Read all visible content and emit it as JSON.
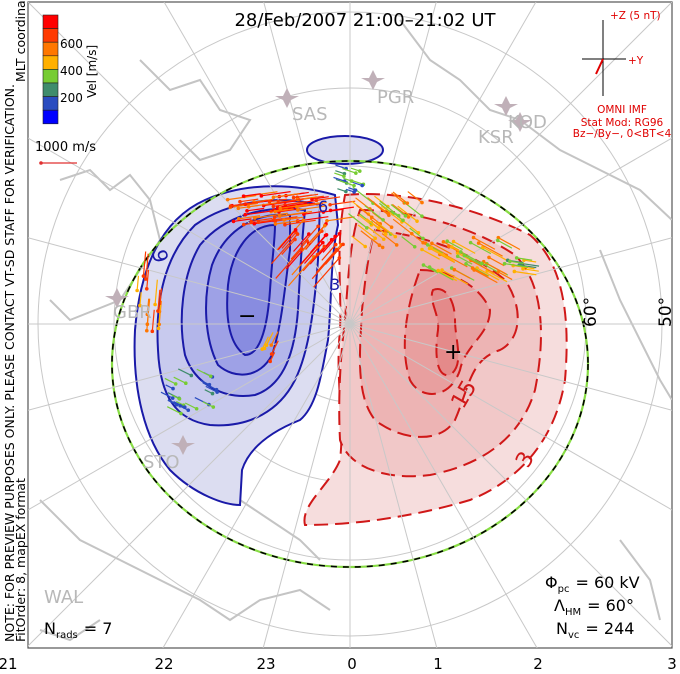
{
  "title": "28/Feb/2007 21:00–21:02 UT",
  "side_note": {
    "line1": "NOTE: FOR PREVIEW PURPOSES ONLY. PLEASE CONTACT VT-SD STAFF FOR VERIFICATION.",
    "line2_bottom": "FitOrder: 8, mapEX format",
    "line2_top": "MLT coordinates"
  },
  "colorbar": {
    "label": "Vel [m/s]",
    "ticks": [
      "600",
      "400",
      "200"
    ],
    "colors": [
      "#ff0000",
      "#ff3a00",
      "#ff7700",
      "#ffb000",
      "#77cc33",
      "#3f8c6c",
      "#2a4cc0",
      "#0000ff"
    ]
  },
  "scale_vector": {
    "label": "1000 m/s",
    "color": "#e03030"
  },
  "imf": {
    "z_label": "+Z (5 nT)",
    "y_label": "+Y",
    "source": "OMNI IMF",
    "model": "Stat Mod: RG96",
    "condition": "Bz−/By−, 0<BT<4",
    "color": "#e00000"
  },
  "stats": {
    "phi_sym": "Φ",
    "phi_sub": "pc",
    "phi_val": "= 60 kV",
    "lam_sym": "Λ",
    "lam_sub": "HM",
    "lam_val": "= 60°",
    "nvc_sym": "N",
    "nvc_sub": "vc",
    "nvc_val": "= 244",
    "nrads_sym": "N",
    "nrads_sub": "rads",
    "nrads_val": "= 7"
  },
  "mlt_labels": [
    "21",
    "22",
    "23",
    "0",
    "1",
    "2",
    "3"
  ],
  "lat_labels": [
    "60°",
    "50°"
  ],
  "radars": [
    "SAS",
    "PGR",
    "KSR",
    "KOD",
    "GBR",
    "STO",
    "WAL"
  ],
  "contour_labels": {
    "neg1": "9",
    "neg2": "6",
    "zero": "3",
    "pos1": "15",
    "pos2": "3"
  },
  "extrema": {
    "min": "−",
    "max": "+"
  },
  "colors": {
    "negative": "#1010a0",
    "positive": "#d01818",
    "hmb_green": "#88dd44"
  }
}
